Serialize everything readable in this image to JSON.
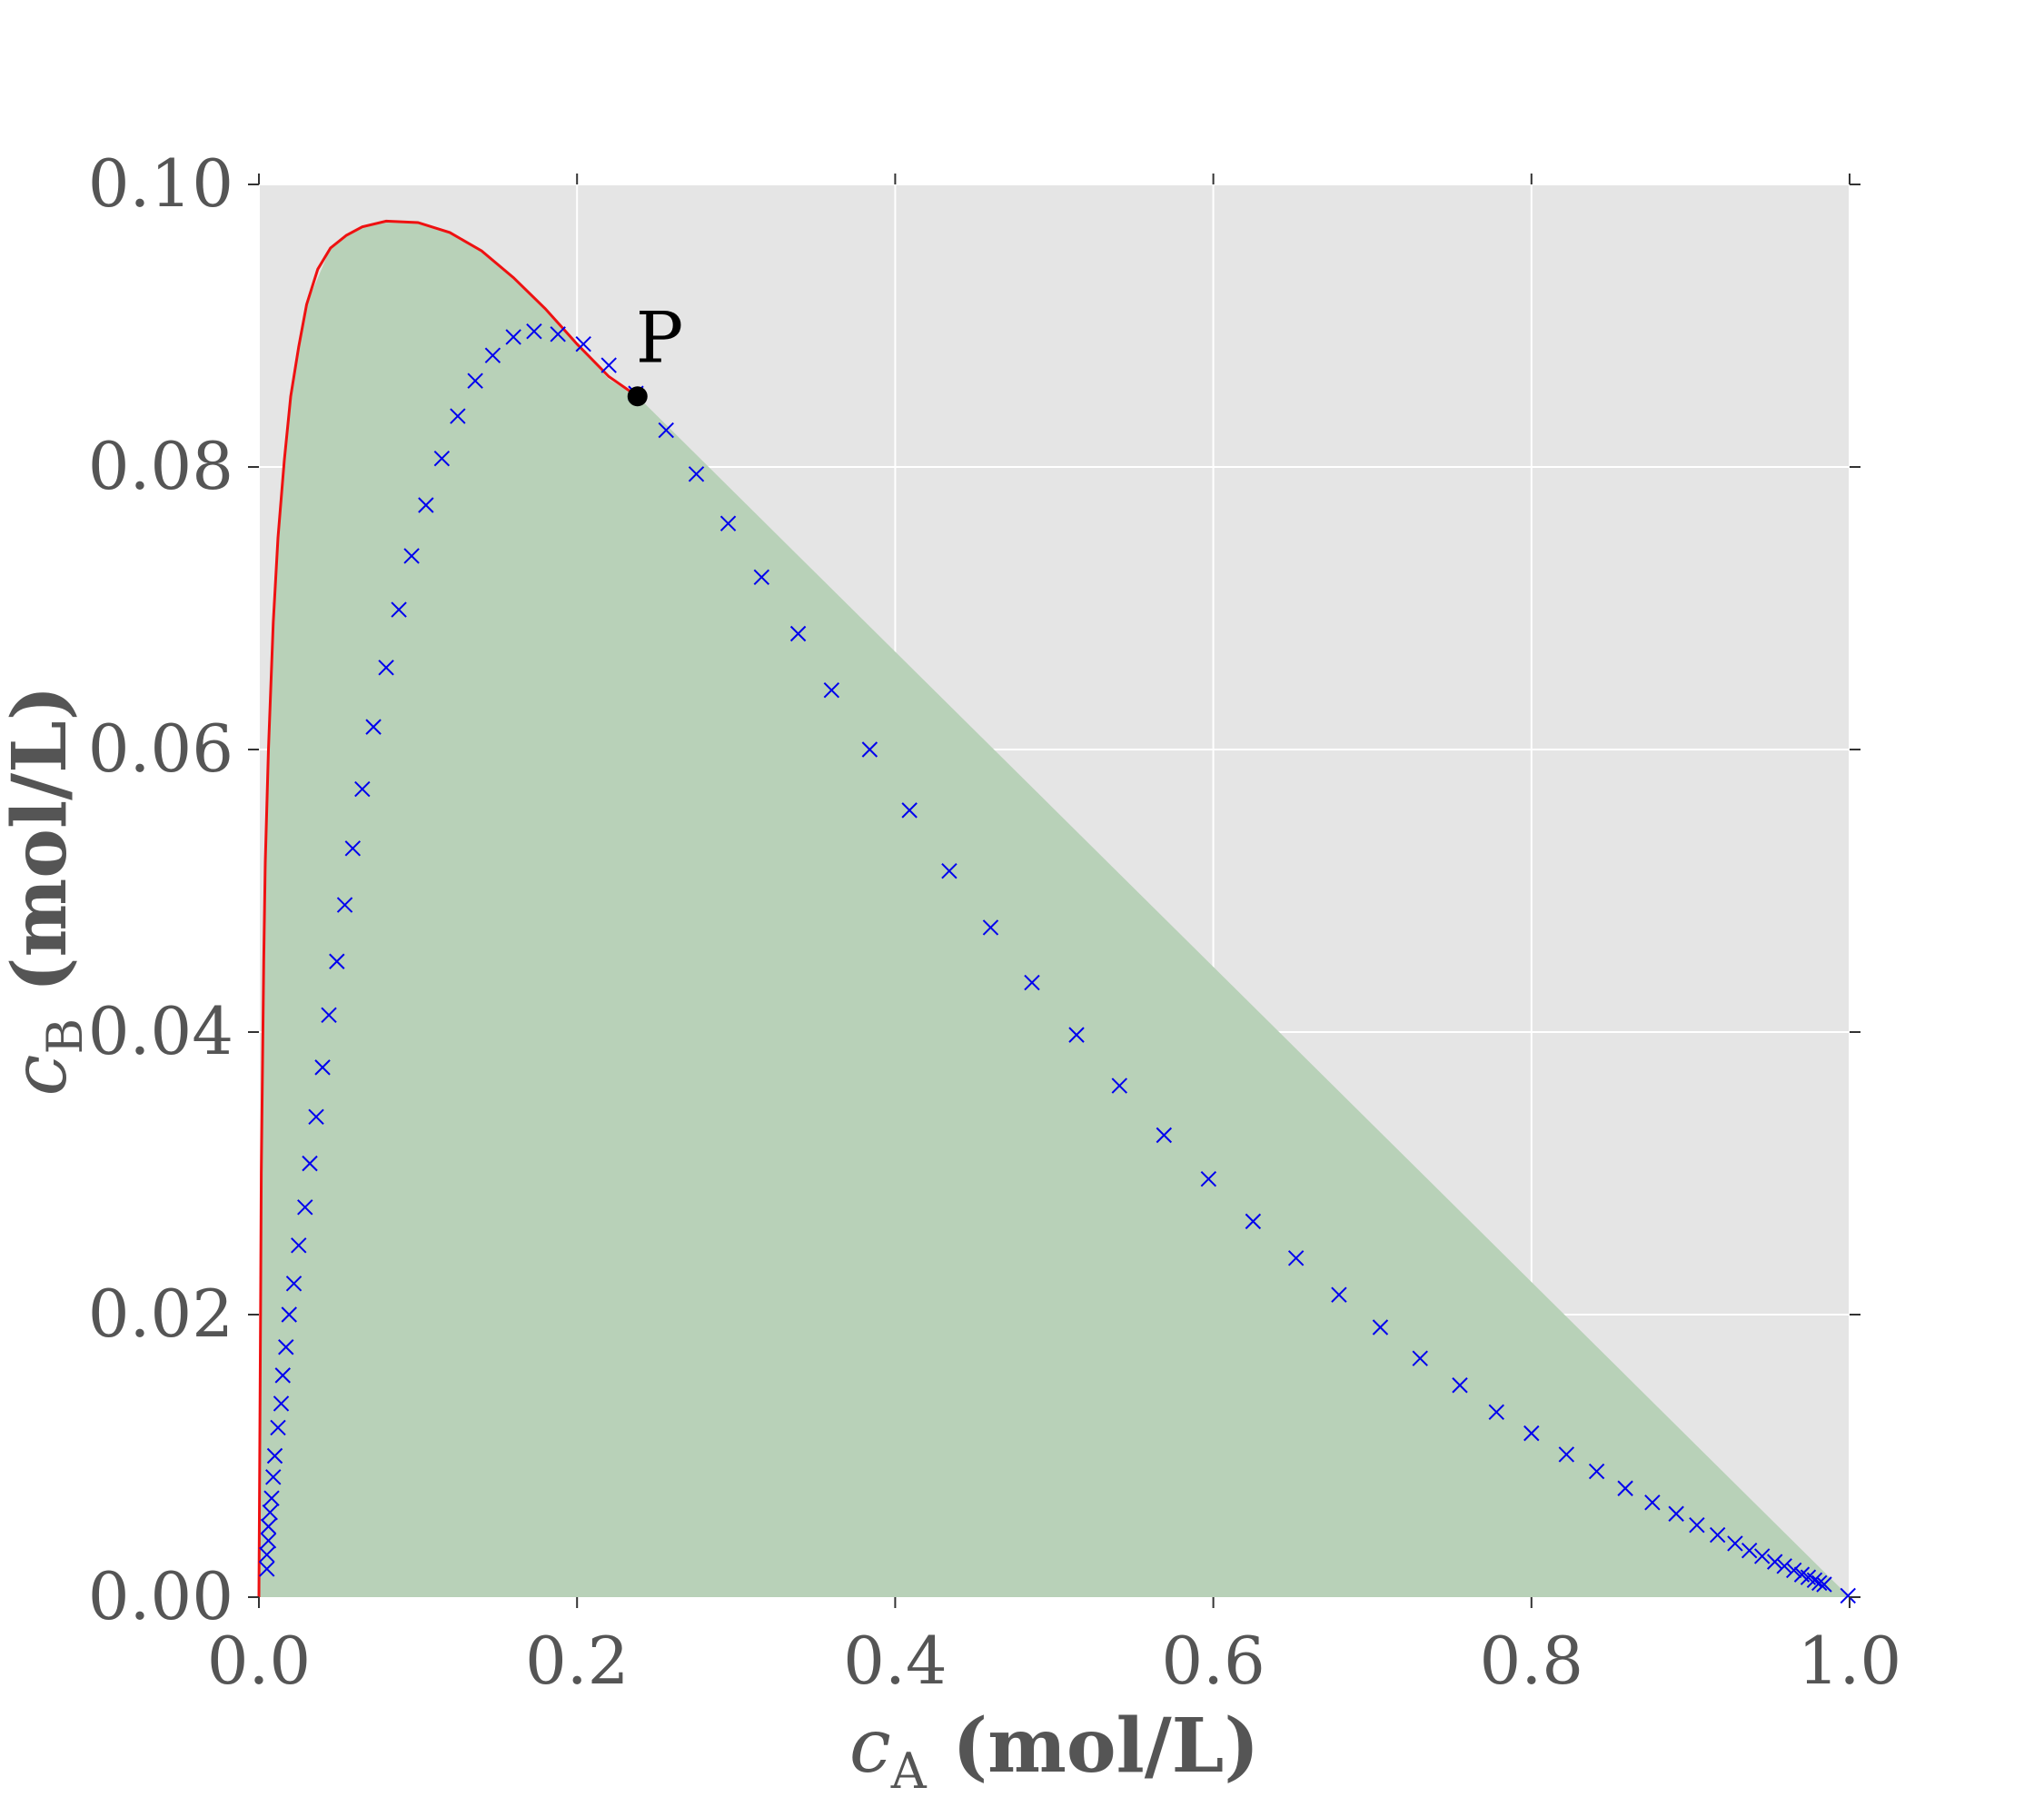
{
  "chart_data": {
    "type": "line",
    "title": "",
    "xlabel": {
      "symbol": "c",
      "subscript": "A",
      "unit": " (mol/L)"
    },
    "ylabel": {
      "symbol": "c",
      "subscript": "B",
      "unit": " (mol/L)"
    },
    "xlim": [
      0.0,
      1.0
    ],
    "ylim": [
      0.0,
      0.1
    ],
    "xticks": [
      0.0,
      0.2,
      0.4,
      0.6,
      0.8,
      1.0
    ],
    "xtick_labels": [
      "0.0",
      "0.2",
      "0.4",
      "0.6",
      "0.8",
      "1.0"
    ],
    "yticks": [
      0.0,
      0.02,
      0.04,
      0.06,
      0.08,
      0.1
    ],
    "ytick_labels": [
      "0.00",
      "0.02",
      "0.04",
      "0.06",
      "0.08",
      "0.10"
    ],
    "grid": true,
    "colors": {
      "background": "#e5e5e5",
      "region": "#b8d1b8",
      "curve": "#ee1111",
      "markers": "#0000ee",
      "point": "#000000"
    },
    "region": {
      "description_points": [
        [
          0.0,
          0.0
        ],
        [
          0.001,
          0.02
        ],
        [
          0.003,
          0.04
        ],
        [
          0.006,
          0.06
        ],
        [
          0.012,
          0.075
        ],
        [
          0.02,
          0.085
        ],
        [
          0.03,
          0.0915
        ],
        [
          0.045,
          0.0955
        ],
        [
          0.06,
          0.0968
        ],
        [
          0.08,
          0.0974
        ],
        [
          0.1,
          0.0973
        ],
        [
          0.12,
          0.0966
        ],
        [
          0.14,
          0.0953
        ],
        [
          0.16,
          0.0934
        ],
        [
          0.18,
          0.0912
        ],
        [
          0.2,
          0.0887
        ],
        [
          0.22,
          0.0862
        ],
        [
          0.238,
          0.085
        ],
        [
          1.0,
          0.0
        ]
      ]
    },
    "series": [
      {
        "type": "line",
        "points": [
          [
            0.0,
            0.0
          ],
          [
            0.0005,
            0.01
          ],
          [
            0.001,
            0.02
          ],
          [
            0.0015,
            0.03
          ],
          [
            0.002,
            0.035
          ],
          [
            0.003,
            0.045
          ],
          [
            0.004,
            0.052
          ],
          [
            0.006,
            0.06
          ],
          [
            0.009,
            0.069
          ],
          [
            0.012,
            0.075
          ],
          [
            0.016,
            0.0805
          ],
          [
            0.02,
            0.085
          ],
          [
            0.025,
            0.0885
          ],
          [
            0.03,
            0.0915
          ],
          [
            0.037,
            0.094
          ],
          [
            0.045,
            0.0955
          ],
          [
            0.055,
            0.0964
          ],
          [
            0.065,
            0.097
          ],
          [
            0.08,
            0.0974
          ],
          [
            0.1,
            0.0973
          ],
          [
            0.12,
            0.0966
          ],
          [
            0.14,
            0.0953
          ],
          [
            0.16,
            0.0934
          ],
          [
            0.18,
            0.0912
          ],
          [
            0.2,
            0.0887
          ],
          [
            0.22,
            0.0864
          ],
          [
            0.238,
            0.085
          ]
        ]
      },
      {
        "type": "scatter",
        "marker": "x",
        "points": [
          [
            0.005,
            0.002
          ],
          [
            0.005,
            0.003
          ],
          [
            0.006,
            0.004
          ],
          [
            0.006,
            0.005
          ],
          [
            0.007,
            0.006
          ],
          [
            0.008,
            0.007
          ],
          [
            0.009,
            0.0085
          ],
          [
            0.01,
            0.01
          ],
          [
            0.012,
            0.012
          ],
          [
            0.014,
            0.0137
          ],
          [
            0.015,
            0.0157
          ],
          [
            0.017,
            0.0177
          ],
          [
            0.019,
            0.02
          ],
          [
            0.022,
            0.0222
          ],
          [
            0.025,
            0.0249
          ],
          [
            0.029,
            0.0276
          ],
          [
            0.032,
            0.0307
          ],
          [
            0.036,
            0.034
          ],
          [
            0.04,
            0.0375
          ],
          [
            0.044,
            0.0412
          ],
          [
            0.049,
            0.045
          ],
          [
            0.054,
            0.049
          ],
          [
            0.059,
            0.053
          ],
          [
            0.065,
            0.0572
          ],
          [
            0.072,
            0.0616
          ],
          [
            0.08,
            0.0658
          ],
          [
            0.088,
            0.0699
          ],
          [
            0.096,
            0.0737
          ],
          [
            0.105,
            0.0773
          ],
          [
            0.115,
            0.0806
          ],
          [
            0.125,
            0.0836
          ],
          [
            0.136,
            0.0861
          ],
          [
            0.147,
            0.0879
          ],
          [
            0.16,
            0.0892
          ],
          [
            0.173,
            0.0896
          ],
          [
            0.188,
            0.0894
          ],
          [
            0.204,
            0.0887
          ],
          [
            0.22,
            0.0872
          ],
          [
            0.237,
            0.0852
          ],
          [
            0.256,
            0.0826
          ],
          [
            0.275,
            0.0795
          ],
          [
            0.295,
            0.076
          ],
          [
            0.316,
            0.0722
          ],
          [
            0.339,
            0.0682
          ],
          [
            0.36,
            0.0642
          ],
          [
            0.384,
            0.06
          ],
          [
            0.409,
            0.0557
          ],
          [
            0.434,
            0.0514
          ],
          [
            0.46,
            0.0474
          ],
          [
            0.486,
            0.0435
          ],
          [
            0.514,
            0.0398
          ],
          [
            0.541,
            0.0362
          ],
          [
            0.569,
            0.0327
          ],
          [
            0.597,
            0.0296
          ],
          [
            0.625,
            0.0266
          ],
          [
            0.652,
            0.024
          ],
          [
            0.679,
            0.0214
          ],
          [
            0.705,
            0.0191
          ],
          [
            0.73,
            0.0169
          ],
          [
            0.755,
            0.015
          ],
          [
            0.778,
            0.0131
          ],
          [
            0.8,
            0.0116
          ],
          [
            0.822,
            0.0101
          ],
          [
            0.841,
            0.0089
          ],
          [
            0.859,
            0.0077
          ],
          [
            0.876,
            0.0067
          ],
          [
            0.891,
            0.0059
          ],
          [
            0.904,
            0.0051
          ],
          [
            0.917,
            0.0044
          ],
          [
            0.928,
            0.0038
          ],
          [
            0.937,
            0.0033
          ],
          [
            0.945,
            0.0029
          ],
          [
            0.953,
            0.0025
          ],
          [
            0.959,
            0.0022
          ],
          [
            0.965,
            0.0019
          ],
          [
            0.97,
            0.0016
          ],
          [
            0.974,
            0.0014
          ],
          [
            0.978,
            0.0012
          ],
          [
            0.981,
            0.001
          ],
          [
            0.984,
            0.0009
          ],
          [
            0.999,
            0.0001
          ]
        ]
      }
    ],
    "annotation": {
      "label": "P",
      "x": 0.238,
      "y": 0.085
    }
  }
}
